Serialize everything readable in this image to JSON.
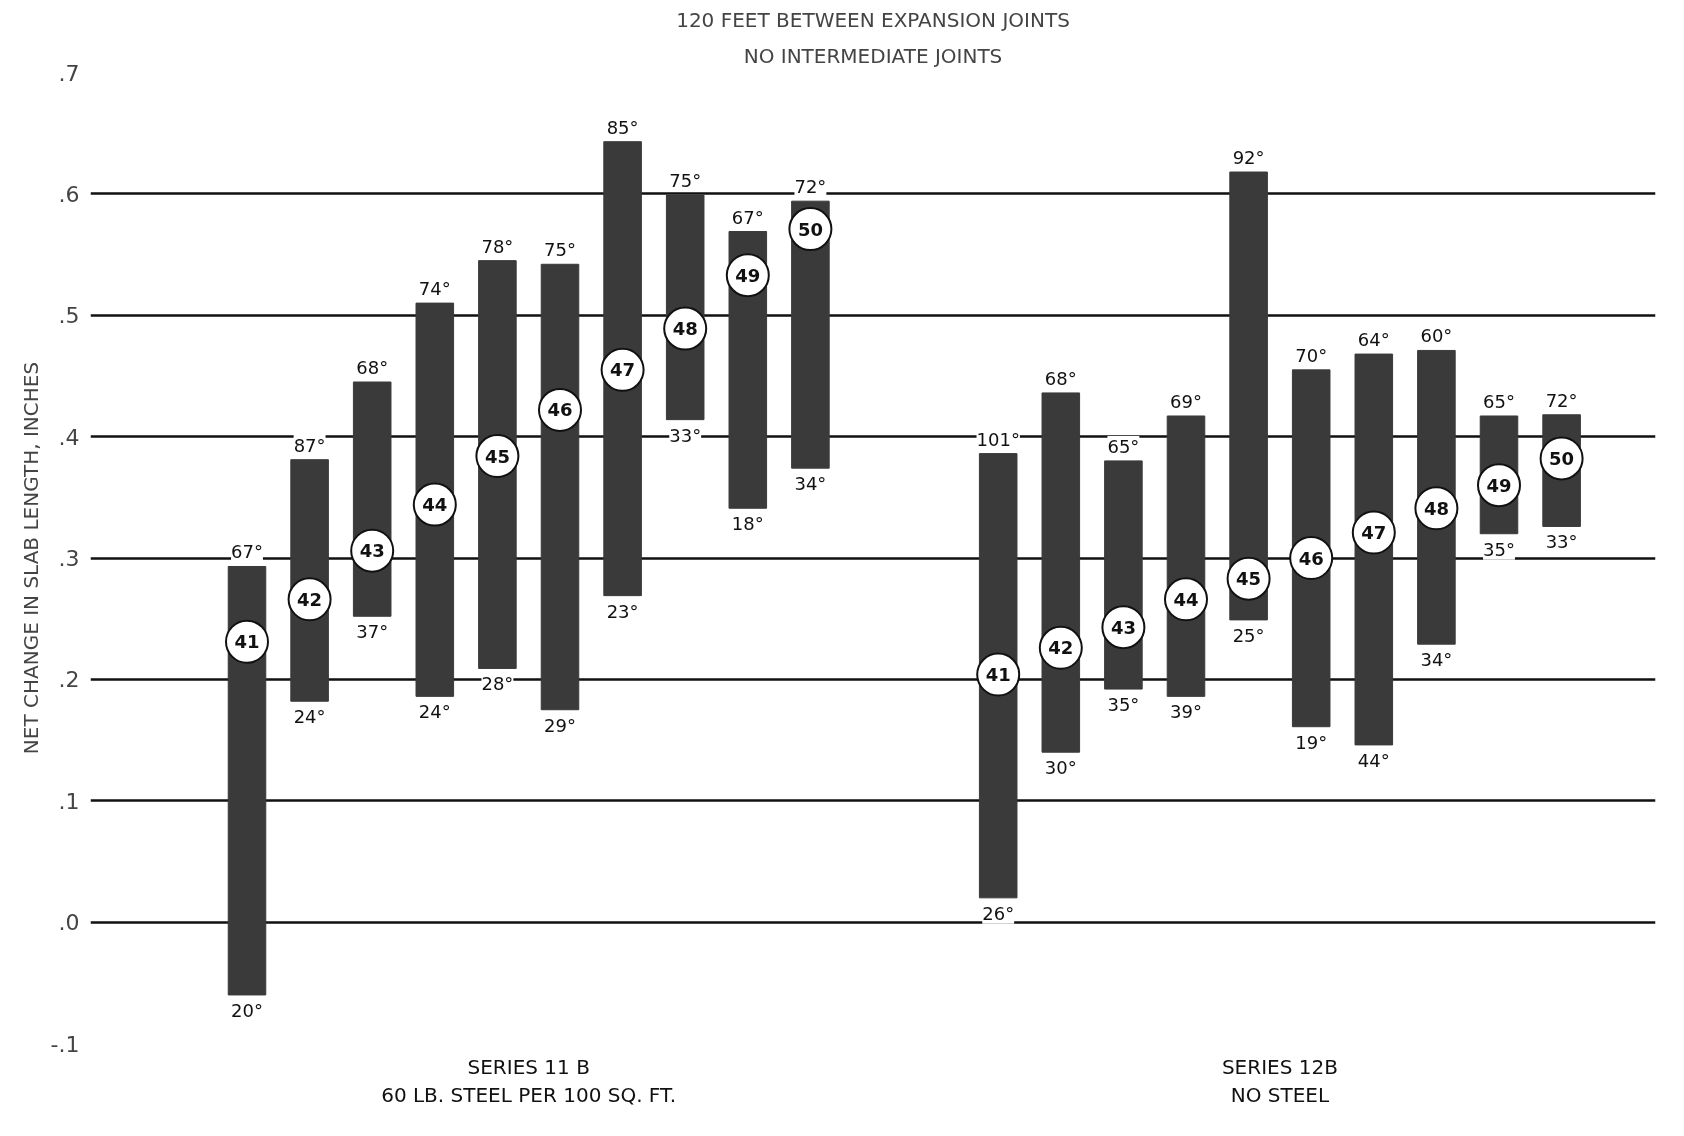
{
  "chart_data": {
    "type": "bar",
    "title": "120 FEET BETWEEN EXPANSION JOINTS",
    "subtitle": "NO INTERMEDIATE JOINTS",
    "ylabel": "NET CHANGE IN SLAB LENGTH, INCHES",
    "categories": [
      null,
      null,
      null,
      null,
      null,
      null,
      null,
      null,
      null,
      null,
      null,
      null,
      null,
      null,
      null,
      null,
      null,
      null,
      null,
      null,
      null,
      null,
      null,
      null,
      null
    ],
    "series": [
      {
        "color": "#3a3a3a",
        "values": [
          null,
          null,
          0.353,
          0.199,
          0.193,
          0.324,
          0.336,
          0.367,
          0.374,
          0.185,
          0.228,
          0.22,
          null,
          null,
          0.366,
          0.296,
          0.188,
          0.231,
          0.369,
          0.294,
          0.322,
          0.242,
          0.097,
          0.092,
          null
        ],
        "base": [
          null,
          null,
          -0.06,
          0.182,
          0.252,
          0.186,
          0.209,
          0.175,
          0.269,
          0.414,
          0.341,
          0.374,
          null,
          null,
          0.02,
          0.14,
          0.192,
          0.186,
          0.249,
          0.161,
          0.146,
          0.229,
          0.32,
          0.326,
          null
        ],
        "value_labels": [
          null,
          null,
          [
            "67°",
            "20°"
          ],
          [
            "87°",
            "24°"
          ],
          [
            "68°",
            "37°"
          ],
          [
            "74°",
            "24°"
          ],
          [
            "78°",
            "28°"
          ],
          [
            "75°",
            "29°"
          ],
          [
            "85°",
            "23°"
          ],
          [
            "75°",
            "33°"
          ],
          [
            "67°",
            "18°"
          ],
          [
            "72°",
            "34°"
          ],
          null,
          null,
          [
            "101°",
            "26°"
          ],
          [
            "68°",
            "30°"
          ],
          [
            "65°",
            "35°"
          ],
          [
            "69°",
            "39°"
          ],
          [
            "92°",
            "25°"
          ],
          [
            "70°",
            "19°"
          ],
          [
            "64°",
            "44°"
          ],
          [
            "60°",
            "34°"
          ],
          [
            "65°",
            "35°"
          ],
          [
            "72°",
            "33°"
          ],
          null
        ]
      },
      {
        "type": "scatter",
        "name": "41",
        "color": "#ffffff",
        "marker": "circle",
        "values": [
          null,
          null,
          0.231,
          null,
          null,
          null,
          null,
          null,
          null,
          null,
          null,
          null,
          null,
          null,
          0.204,
          null,
          null,
          null,
          null,
          null,
          null,
          null,
          null,
          null,
          null
        ]
      },
      {
        "type": "scatter",
        "name": "42",
        "color": "#ffffff",
        "marker": "circle",
        "values": [
          null,
          null,
          null,
          0.266,
          null,
          null,
          null,
          null,
          null,
          null,
          null,
          null,
          null,
          null,
          null,
          0.226,
          null,
          null,
          null,
          null,
          null,
          null,
          null,
          null,
          null
        ]
      },
      {
        "type": "scatter",
        "name": "43",
        "color": "#ffffff",
        "marker": "circle",
        "values": [
          null,
          null,
          null,
          null,
          0.306,
          null,
          null,
          null,
          null,
          null,
          null,
          null,
          null,
          null,
          null,
          null,
          0.243,
          null,
          null,
          null,
          null,
          null,
          null,
          null,
          null
        ]
      },
      {
        "type": "scatter",
        "name": "44",
        "color": "#ffffff",
        "marker": "circle",
        "values": [
          null,
          null,
          null,
          null,
          null,
          0.344,
          null,
          null,
          null,
          null,
          null,
          null,
          null,
          null,
          null,
          null,
          null,
          0.266,
          null,
          null,
          null,
          null,
          null,
          null,
          null
        ]
      },
      {
        "type": "scatter",
        "name": "45",
        "color": "#ffffff",
        "marker": "circle",
        "values": [
          null,
          null,
          null,
          null,
          null,
          null,
          0.384,
          null,
          null,
          null,
          null,
          null,
          null,
          null,
          null,
          null,
          null,
          null,
          0.283,
          null,
          null,
          null,
          null,
          null,
          null
        ]
      },
      {
        "type": "scatter",
        "name": "46",
        "color": "#ffffff",
        "marker": "circle",
        "values": [
          null,
          null,
          null,
          null,
          null,
          null,
          null,
          0.422,
          null,
          null,
          null,
          null,
          null,
          null,
          null,
          null,
          null,
          null,
          null,
          0.3,
          null,
          null,
          null,
          null,
          null
        ]
      },
      {
        "type": "scatter",
        "name": "47",
        "color": "#ffffff",
        "marker": "circle",
        "values": [
          null,
          null,
          null,
          null,
          null,
          null,
          null,
          null,
          0.455,
          null,
          null,
          null,
          null,
          null,
          null,
          null,
          null,
          null,
          null,
          null,
          0.321,
          null,
          null,
          null,
          null
        ]
      },
      {
        "type": "scatter",
        "name": "48",
        "color": "#ffffff",
        "marker": "circle",
        "values": [
          null,
          null,
          null,
          null,
          null,
          null,
          null,
          null,
          null,
          0.489,
          null,
          null,
          null,
          null,
          null,
          null,
          null,
          null,
          null,
          null,
          null,
          0.341,
          null,
          null,
          null
        ]
      },
      {
        "type": "scatter",
        "name": "49",
        "color": "#ffffff",
        "marker": "circle",
        "values": [
          null,
          null,
          null,
          null,
          null,
          null,
          null,
          null,
          null,
          null,
          0.533,
          null,
          null,
          null,
          null,
          null,
          null,
          null,
          null,
          null,
          null,
          null,
          0.36,
          null,
          null
        ]
      },
      {
        "type": "scatter",
        "name": "50",
        "color": "#ffffff",
        "marker": "circle",
        "values": [
          null,
          null,
          null,
          null,
          null,
          null,
          null,
          null,
          null,
          null,
          null,
          0.571,
          null,
          null,
          null,
          null,
          null,
          null,
          null,
          null,
          null,
          null,
          null,
          0.382,
          null
        ]
      }
    ],
    "ylim": [
      -0.1,
      0.7
    ],
    "yticks": [
      {
        "value": -0.1,
        "label": "-.1"
      },
      {
        "value": 0.0,
        "label": ".0"
      },
      {
        "value": 0.1,
        "label": ".1"
      },
      {
        "value": 0.2,
        "label": ".2"
      },
      {
        "value": 0.3,
        "label": ".3"
      },
      {
        "value": 0.4,
        "label": ".4"
      },
      {
        "value": 0.5,
        "label": ".5"
      },
      {
        "value": 0.6,
        "label": ".6"
      },
      {
        "value": 0.7,
        "label": ".7"
      }
    ],
    "grid": "y",
    "tick_labels": "y",
    "annotations": [
      "SERIES 11 B\n60 LB. STEEL PER 100 SQ. FT.",
      "SERIES 12B\nNO STEEL"
    ]
  }
}
